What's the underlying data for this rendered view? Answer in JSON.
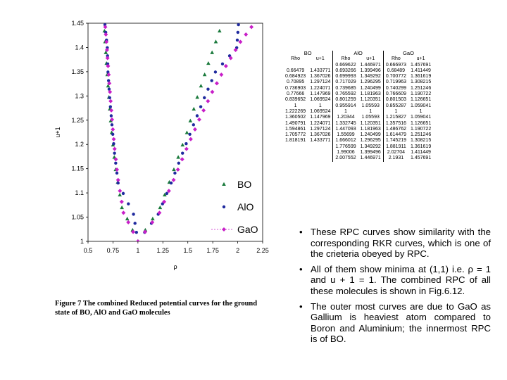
{
  "chart_data": {
    "type": "scatter",
    "xlabel": "ρ",
    "ylabel": "u+1",
    "xlim": [
      0.5,
      2.25
    ],
    "ylim": [
      1.0,
      1.45
    ],
    "xticks": [
      "0.5",
      "0.75",
      "1",
      "1.25",
      "1.5",
      "1.75",
      "2",
      "2.25"
    ],
    "yticks": [
      "1",
      "1.05",
      "1.1",
      "1.15",
      "1.2",
      "1.25",
      "1.3",
      "1.35",
      "1.4",
      "1.45"
    ],
    "legend_position": "bottom-right",
    "series": [
      {
        "name": "BO",
        "marker": "triangle",
        "color": "#1a7a3c",
        "x": [
          0.66479,
          0.684923,
          0.70895,
          0.736903,
          0.77666,
          0.839652,
          1,
          1.222269,
          1.360502,
          1.490791,
          1.594861,
          1.705772,
          1.818191
        ],
        "y": [
          1.433771,
          1.367026,
          1.297124,
          1.224071,
          1.147969,
          1.069524,
          1,
          1.069524,
          1.147969,
          1.224071,
          1.297124,
          1.367026,
          1.433771
        ]
      },
      {
        "name": "AlO",
        "marker": "circle",
        "color": "#1f2a9e",
        "x": [
          0.669622,
          0.693266,
          0.699993,
          0.717029,
          0.739685,
          0.765592,
          0.801259,
          0.955914,
          1,
          1.20344,
          1.332745,
          1.447093,
          1.55699,
          1.666012,
          1.776599,
          1.99006,
          2.007552
        ],
        "y": [
          1.446971,
          1.399496,
          1.349292,
          1.296295,
          1.240499,
          1.181963,
          1.120351,
          1.05593,
          1,
          1.05593,
          1.120351,
          1.181963,
          1.240499,
          1.296295,
          1.349292,
          1.399496,
          1.446971
        ]
      },
      {
        "name": "GaO",
        "marker": "diamond",
        "color": "#c81fc8",
        "x": [
          0.666973,
          0.68489,
          0.700772,
          0.719963,
          0.740299,
          0.766609,
          0.801503,
          0.855287,
          1,
          1.215827,
          1.357516,
          1.486762,
          1.614479,
          1.745219,
          1.881911,
          2.02704,
          2.1931
        ],
        "y": [
          1.457691,
          1.411449,
          1.361619,
          1.308215,
          1.251246,
          1.190722,
          1.126651,
          1.059041,
          1,
          1.059041,
          1.126651,
          1.190722,
          1.251246,
          1.308215,
          1.361619,
          1.411449,
          1.457691
        ]
      }
    ]
  },
  "table": {
    "groups": [
      {
        "title": "BO",
        "columns": [
          {
            "header": "Rho",
            "values": [
              "",
              "0.66479",
              "0.684923",
              "0.70895",
              "0.736903",
              "0.77666",
              "0.839652",
              "1",
              "1.222269",
              "1.360502",
              "1.490791",
              "1.594861",
              "1.705772",
              "1.818191"
            ]
          },
          {
            "header": "u+1",
            "values": [
              "",
              "1.433771",
              "1.367026",
              "1.297124",
              "1.224071",
              "1.147969",
              "1.069524",
              "1",
              "1.069524",
              "1.147969",
              "1.224071",
              "1.297124",
              "1.367026",
              "1.433771"
            ]
          }
        ]
      },
      {
        "title": "AlO",
        "columns": [
          {
            "header": "Rho",
            "values": [
              "0.669622",
              "0.693266",
              "0.699993",
              "0.717029",
              "0.739685",
              "0.765592",
              "0.801259",
              "0.955914",
              "1",
              "1.20344",
              "1.332745",
              "1.447093",
              "1.55699",
              "1.666012",
              "1.776599",
              "1.99006",
              "2.007552"
            ]
          },
          {
            "header": "u+1",
            "values": [
              "1.446971",
              "1.399496",
              "1.349292",
              "1.296295",
              "1.240499",
              "1.181963",
              "1.120351",
              "1.05593",
              "1",
              "1.05593",
              "1.120351",
              "1.181963",
              "1.240499",
              "1.296295",
              "1.349292",
              "1.399496",
              "1.446971"
            ]
          }
        ]
      },
      {
        "title": "GaO",
        "columns": [
          {
            "header": "Rho",
            "values": [
              "0.666973",
              "0.68489",
              "0.700772",
              "0.719963",
              "0.740299",
              "0.766609",
              "0.801503",
              "0.855287",
              "1",
              "1.215827",
              "1.357516",
              "1.486762",
              "1.614479",
              "1.745219",
              "1.881911",
              "2.02704",
              "2.1931"
            ]
          },
          {
            "header": "u+1",
            "values": [
              "1.457691",
              "1.411449",
              "1.361619",
              "1.308215",
              "1.251246",
              "1.190722",
              "1.126651",
              "1.059041",
              "1",
              "1.059041",
              "1.126651",
              "1.190722",
              "1.251246",
              "1.308215",
              "1.361619",
              "1.411449",
              "1.457691"
            ]
          }
        ]
      }
    ]
  },
  "caption": "Figure 7 The combined Reduced potential curves for the ground state of BO, AlO and GaO molecules",
  "bullets": [
    "These RPC curves show similarity with the corresponding RKR curves, which is one of the crieteria obeyed by RPC.",
    "All of them show minima at (1,1) i.e. ρ = 1 and u + 1 = 1. The combined RPC of all these molecules is shown in Fig.6.12.",
    "The outer most curves are due to GaO as Gallium is heaviest atom compared to Boron and Aluminium; the innermost RPC is of BO."
  ],
  "bullet_symbol": "•"
}
